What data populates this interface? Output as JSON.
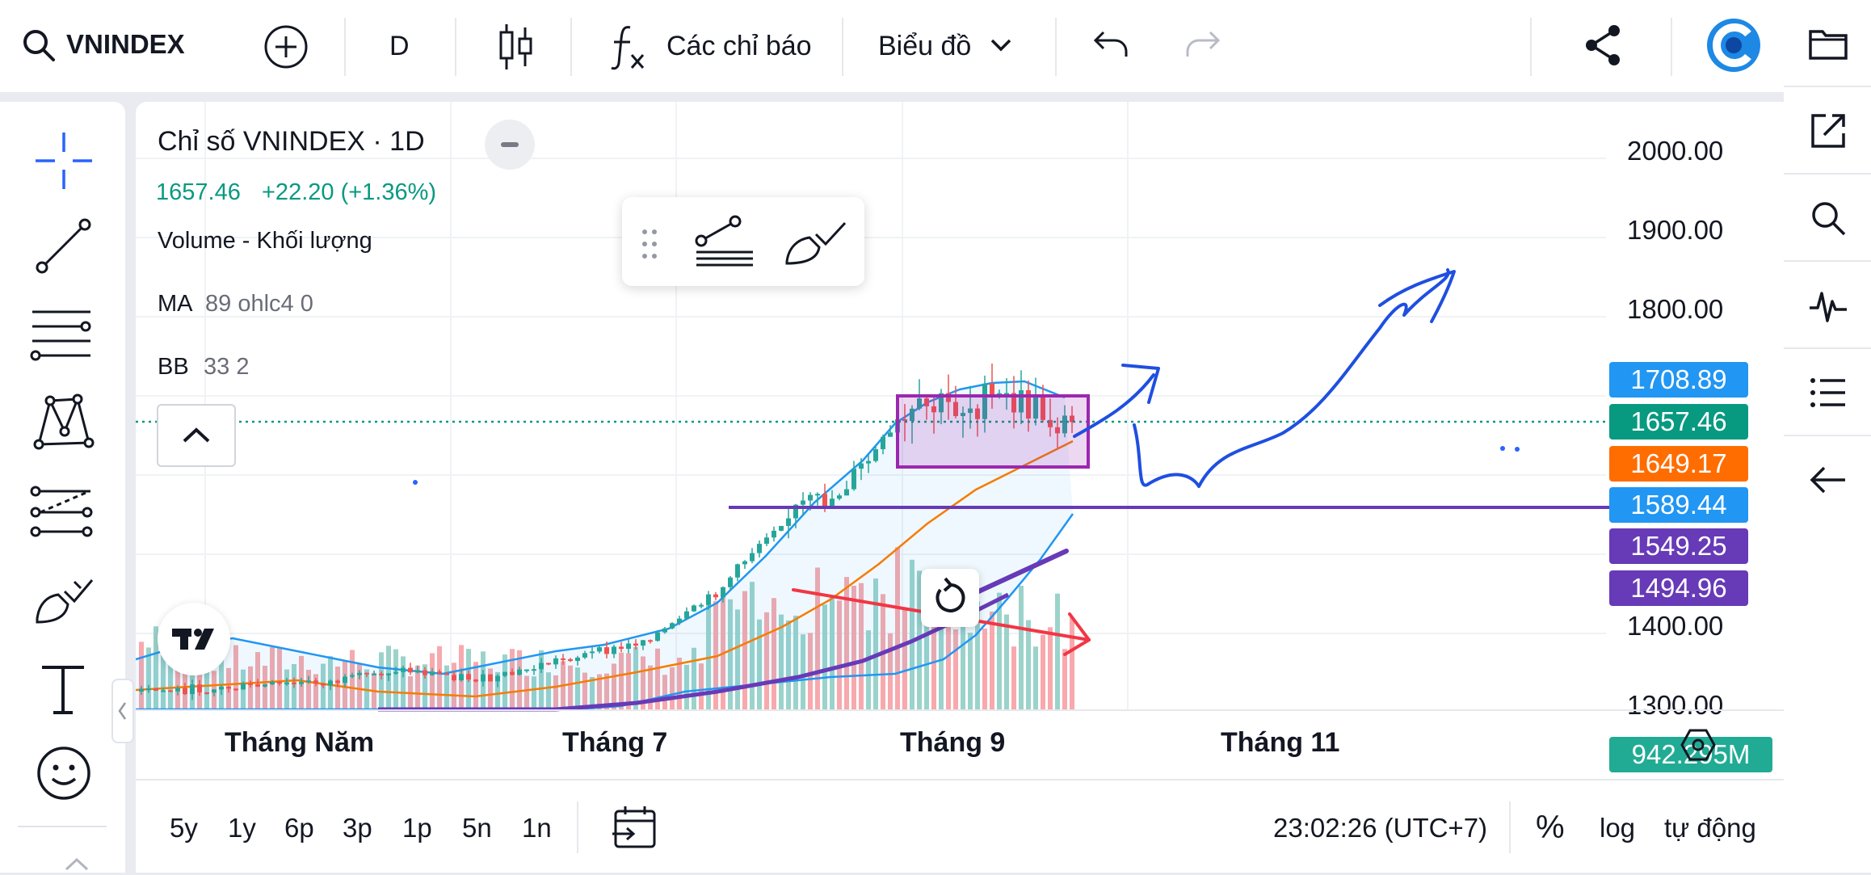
{
  "toolbar": {
    "symbol": "VNINDEX",
    "interval": "D",
    "indicators_label": "Các chỉ báo",
    "chart_label": "Biểu đồ"
  },
  "legend": {
    "title": "Chỉ số VNINDEX · 1D",
    "price": "1657.46",
    "change": "+22.20 (+1.36%)",
    "volume_label": "Volume - Khối lượng",
    "ma_name": "MA",
    "ma_params": "89 ohlc4 0",
    "bb_name": "BB",
    "bb_params": "33 2"
  },
  "price_axis": {
    "labels": [
      "2000.00",
      "1900.00",
      "1800.00",
      "1400.00",
      "1300.00"
    ]
  },
  "price_tags": [
    {
      "value": "1708.89",
      "color": "#2196f3"
    },
    {
      "value": "1657.46",
      "color": "#089981"
    },
    {
      "value": "1649.17",
      "color": "#ff6d00"
    },
    {
      "value": "1589.44",
      "color": "#2196f3"
    },
    {
      "value": "1549.25",
      "color": "#673ab7"
    },
    {
      "value": "1494.96",
      "color": "#673ab7"
    },
    {
      "value": "942.295M",
      "color": "#22ab94"
    }
  ],
  "time_axis": {
    "labels": [
      "Tháng Năm",
      "Tháng 7",
      "Tháng 9",
      "Tháng 11"
    ]
  },
  "bottom": {
    "ranges": [
      "5y",
      "1y",
      "6p",
      "3p",
      "1p",
      "5n",
      "1n"
    ],
    "clock": "23:02:26 (UTC+7)",
    "percent": "%",
    "log": "log",
    "auto": "tự động"
  },
  "colors": {
    "up": "#26a69a",
    "down": "#ef5350",
    "bb": "#2196f3",
    "ma": "#f57c00",
    "purple": "#673ab7",
    "drawing_blue": "#1f4fe0",
    "drawing_red": "#f23645"
  },
  "icons": {
    "left_toolbar": [
      "crosshair-icon",
      "trend-line-icon",
      "fib-levels-icon",
      "pattern-icon",
      "prediction-icon",
      "brush-icon",
      "text-icon",
      "emoji-icon"
    ],
    "right_toolbar": [
      "folder-icon",
      "open-external-icon",
      "search-icon",
      "pulse-icon",
      "list-icon",
      "back-arrow-icon"
    ]
  }
}
